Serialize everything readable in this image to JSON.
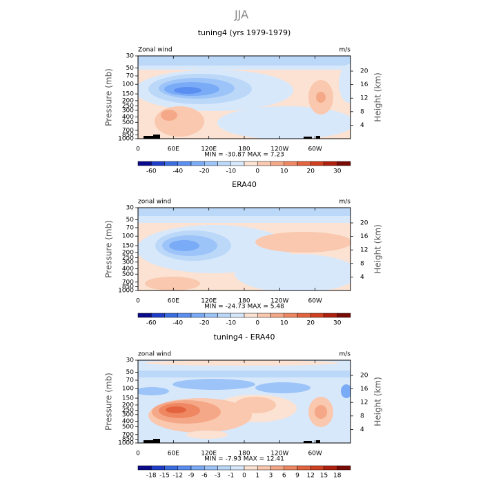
{
  "title": "JJA",
  "chart_data": [
    {
      "type": "contour",
      "title": "tuning4 (yrs 1979-1979)",
      "left_label": "Zonal wind",
      "right_label": "m/s",
      "ylabel": "Pressure (mb)",
      "y2label": "Height (km)",
      "xlim": [
        0,
        360
      ],
      "xticks": [
        0,
        {
          "value": 60,
          "label": "60E"
        },
        {
          "value": 120,
          "label": "120E"
        },
        180,
        {
          "value": 240,
          "label": "120W"
        },
        {
          "value": 300,
          "label": "60W"
        }
      ],
      "ylim": [
        1000,
        30
      ],
      "y_log": true,
      "yticks": [
        30,
        50,
        70,
        100,
        150,
        200,
        250,
        300,
        400,
        500,
        700,
        850,
        1000
      ],
      "y2lim": [
        0,
        24.5
      ],
      "y2ticks": [
        4,
        8,
        12,
        16,
        20
      ],
      "stats": "MIN = -30.87   MAX =  7.23",
      "levels": [
        -60,
        -40,
        -20,
        -10,
        0,
        10,
        20,
        30
      ],
      "colors": [
        "#0a0a8c",
        "#1e3dc8",
        "#3a6ee0",
        "#5a8ef0",
        "#7aabf7",
        "#9cc4f9",
        "#bcd8f9",
        "#d8e8fb",
        "#fbe2d2",
        "#f9c8ae",
        "#f5a888",
        "#ef8763",
        "#e4633f",
        "#d03f20",
        "#b0200f",
        "#7a0a05"
      ]
    },
    {
      "type": "contour",
      "title": "ERA40",
      "left_label": "zonal wind",
      "right_label": "m/s",
      "ylabel": "Pressure (mb)",
      "y2label": "Height (km)",
      "xlim": [
        0,
        360
      ],
      "xticks": [
        0,
        {
          "value": 60,
          "label": "60E"
        },
        {
          "value": 120,
          "label": "120E"
        },
        180,
        {
          "value": 240,
          "label": "120W"
        },
        {
          "value": 300,
          "label": "60W"
        }
      ],
      "ylim": [
        1000,
        30
      ],
      "y_log": true,
      "yticks": [
        30,
        50,
        70,
        100,
        150,
        200,
        250,
        300,
        400,
        500,
        700,
        850,
        1000
      ],
      "y2lim": [
        0,
        24.5
      ],
      "y2ticks": [
        4,
        8,
        12,
        16,
        20
      ],
      "stats": "MIN = -24.73   MAX =  5.48",
      "levels": [
        -60,
        -40,
        -20,
        -10,
        0,
        10,
        20,
        30
      ],
      "colors": [
        "#0a0a8c",
        "#1e3dc8",
        "#3a6ee0",
        "#5a8ef0",
        "#7aabf7",
        "#9cc4f9",
        "#bcd8f9",
        "#d8e8fb",
        "#fbe2d2",
        "#f9c8ae",
        "#f5a888",
        "#ef8763",
        "#e4633f",
        "#d03f20",
        "#b0200f",
        "#7a0a05"
      ]
    },
    {
      "type": "contour",
      "title": "tuning4 - ERA40",
      "left_label": "zonal wind",
      "right_label": "m/s",
      "ylabel": "Pressure (mb)",
      "y2label": "Height (km)",
      "xlim": [
        0,
        360
      ],
      "xticks": [
        0,
        {
          "value": 60,
          "label": "60E"
        },
        {
          "value": 120,
          "label": "120E"
        },
        180,
        {
          "value": 240,
          "label": "120W"
        },
        {
          "value": 300,
          "label": "60W"
        }
      ],
      "ylim": [
        1000,
        30
      ],
      "y_log": true,
      "yticks": [
        30,
        50,
        70,
        100,
        150,
        200,
        250,
        300,
        400,
        500,
        700,
        850,
        1000
      ],
      "y2lim": [
        0,
        24.5
      ],
      "y2ticks": [
        4,
        8,
        12,
        16,
        20
      ],
      "stats": "MIN = -7.93   MAX = 12.41",
      "levels": [
        -18,
        -15,
        -12,
        -9,
        -6,
        -3,
        -1,
        0,
        1,
        3,
        6,
        9,
        12,
        15,
        18
      ],
      "colors": [
        "#0a0a8c",
        "#1e3dc8",
        "#3a6ee0",
        "#5a8ef0",
        "#7aabf7",
        "#9cc4f9",
        "#bcd8f9",
        "#d8e8fb",
        "#fbe2d2",
        "#f9c8ae",
        "#f5a888",
        "#ef8763",
        "#e4633f",
        "#d03f20",
        "#b0200f",
        "#7a0a05"
      ]
    }
  ]
}
